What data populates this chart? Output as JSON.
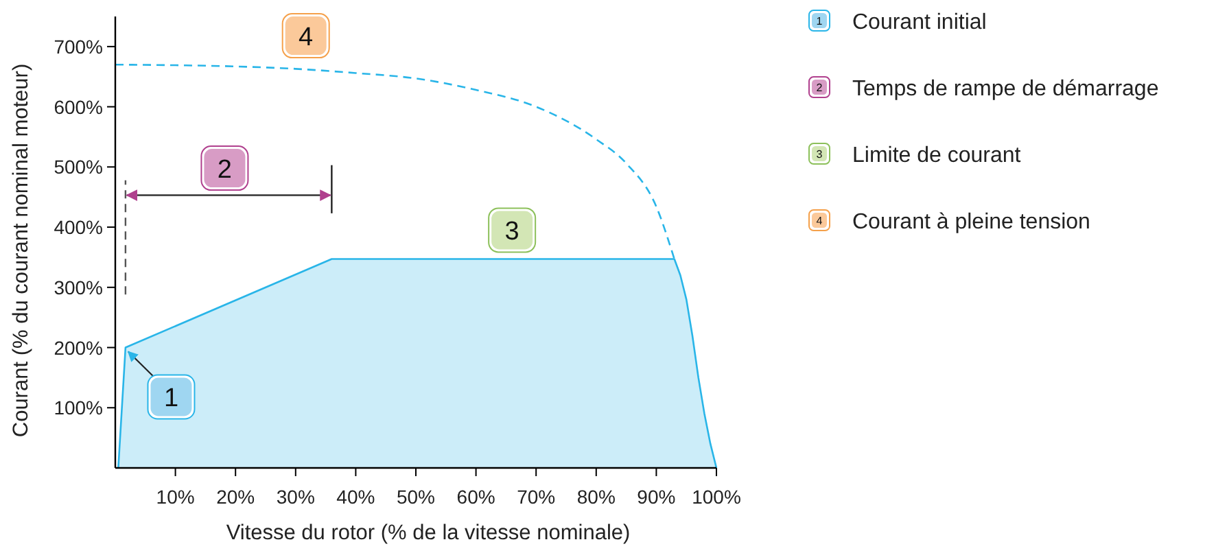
{
  "chart_data": {
    "type": "area",
    "xlabel": "Vitesse du rotor (% de la vitesse nominale)",
    "ylabel": "Courant (% du courant nominal moteur)",
    "xlim": [
      0,
      100
    ],
    "ylim": [
      0,
      750
    ],
    "xticks": [
      {
        "value": 10,
        "label": "10%"
      },
      {
        "value": 20,
        "label": "20%"
      },
      {
        "value": 30,
        "label": "30%"
      },
      {
        "value": 40,
        "label": "40%"
      },
      {
        "value": 50,
        "label": "50%"
      },
      {
        "value": 60,
        "label": "60%"
      },
      {
        "value": 70,
        "label": "70%"
      },
      {
        "value": 80,
        "label": "80%"
      },
      {
        "value": 90,
        "label": "90%"
      },
      {
        "value": 100,
        "label": "100%"
      }
    ],
    "yticks": [
      {
        "value": 100,
        "label": "100%"
      },
      {
        "value": 200,
        "label": "200%"
      },
      {
        "value": 300,
        "label": "300%"
      },
      {
        "value": 400,
        "label": "400%"
      },
      {
        "value": 500,
        "label": "500%"
      },
      {
        "value": 600,
        "label": "600%"
      },
      {
        "value": 700,
        "label": "700%"
      }
    ],
    "series": [
      {
        "color": "#29b5e8",
        "x": [
          0.5,
          1.7,
          36,
          93,
          94,
          95,
          96,
          97,
          98,
          99,
          100
        ],
        "values": [
          0,
          200,
          347,
          347,
          320,
          280,
          220,
          150,
          90,
          40,
          0
        ]
      },
      {
        "type": "line",
        "color": "#29b5e8",
        "line_style": "dashed",
        "x": [
          0,
          10,
          20,
          30,
          40,
          50,
          60,
          70,
          80,
          85,
          90,
          93
        ],
        "values": [
          670,
          669,
          667,
          663,
          656,
          647,
          628,
          600,
          546,
          506,
          434,
          347
        ]
      }
    ],
    "ref_lines": [
      {
        "axis": "x",
        "value": 1.7,
        "line_style": "dashed",
        "color": "#555555"
      },
      {
        "axis": "x",
        "value": 36,
        "line_style": "solid",
        "color": "#222222"
      }
    ],
    "annotations": [
      {
        "text": "1",
        "x": 9.3,
        "y": 118
      },
      {
        "text": "2",
        "x": 18.2,
        "y": 498
      },
      {
        "text": "3",
        "x": 66,
        "y": 395
      },
      {
        "text": "4",
        "x": 31.7,
        "y": 718
      },
      "Courant initial",
      "Temps de rampe de démarrage",
      "Limite de courant",
      "Courant à pleine tension"
    ]
  }
}
